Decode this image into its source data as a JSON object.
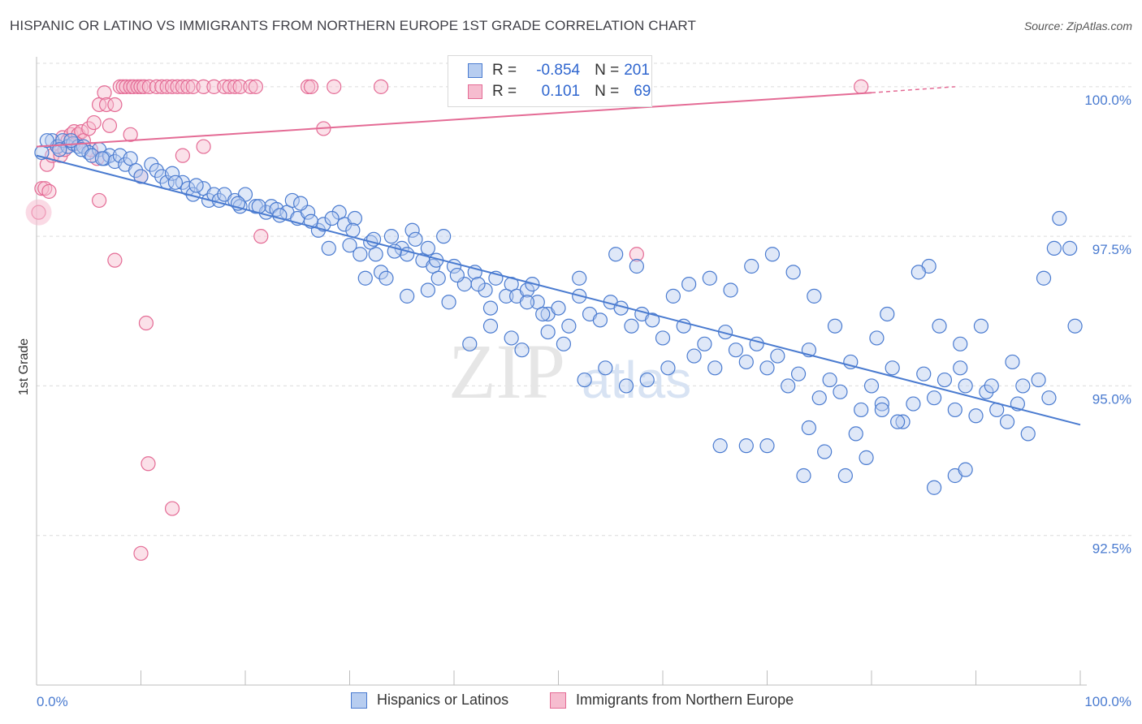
{
  "title": "HISPANIC OR LATINO VS IMMIGRANTS FROM NORTHERN EUROPE 1ST GRADE CORRELATION CHART",
  "source": "Source: ZipAtlas.com",
  "legend": {
    "row1": {
      "r_label": "R = ",
      "r_value": "-0.854",
      "n_label": "N = ",
      "n_value": "201"
    },
    "row2": {
      "r_label": "R = ",
      "r_value": "0.101",
      "n_label": "N = ",
      "n_value": "69"
    }
  },
  "bottom_legend": {
    "series1": "Hispanics or Latinos",
    "series2": "Immigrants from Northern Europe"
  },
  "watermark": {
    "zip": "ZIP",
    "atlas": "atlas"
  },
  "colors": {
    "blue": "#4a7bd0",
    "blue_fill": "#b7cdf0",
    "pink": "#e46b95",
    "pink_fill": "#f6bccf",
    "grid": "#dcdcdc"
  },
  "chart_data": {
    "type": "scatter",
    "title": "HISPANIC OR LATINO VS IMMIGRANTS FROM NORTHERN EUROPE 1ST GRADE CORRELATION CHART",
    "xlabel": "",
    "ylabel": "1st Grade",
    "xlim": [
      0,
      100
    ],
    "ylim": [
      90.0,
      100.5
    ],
    "x_tick_labels": [
      "0.0%",
      "100.0%"
    ],
    "y_ticks": [
      92.5,
      95.0,
      97.5,
      100.0
    ],
    "y_tick_labels": [
      "92.5%",
      "95.0%",
      "97.5%",
      "100.0%"
    ],
    "grid": true,
    "series": [
      {
        "name": "Hispanics or Latinos",
        "color": "#4a7bd0",
        "R": -0.854,
        "N": 201,
        "trend": {
          "x": [
            0,
            100
          ],
          "y": [
            98.85,
            94.35
          ]
        },
        "points": [
          [
            0.5,
            98.9
          ],
          [
            1.5,
            99.1
          ],
          [
            2.0,
            99.0
          ],
          [
            2.5,
            99.1
          ],
          [
            3.0,
            99.0
          ],
          [
            3.5,
            99.05
          ],
          [
            4.0,
            99.0
          ],
          [
            4.5,
            99.0
          ],
          [
            5.0,
            98.9
          ],
          [
            6.0,
            98.95
          ],
          [
            6.5,
            98.8
          ],
          [
            7.0,
            98.85
          ],
          [
            7.5,
            98.75
          ],
          [
            8.0,
            98.85
          ],
          [
            8.5,
            98.7
          ],
          [
            9.0,
            98.8
          ],
          [
            9.5,
            98.6
          ],
          [
            10.0,
            98.5
          ],
          [
            11.0,
            98.7
          ],
          [
            11.5,
            98.6
          ],
          [
            12.0,
            98.5
          ],
          [
            12.5,
            98.4
          ],
          [
            13.0,
            98.55
          ],
          [
            14.0,
            98.4
          ],
          [
            14.5,
            98.3
          ],
          [
            15.0,
            98.2
          ],
          [
            16.0,
            98.3
          ],
          [
            16.5,
            98.1
          ],
          [
            17.0,
            98.2
          ],
          [
            17.5,
            98.1
          ],
          [
            18.0,
            98.2
          ],
          [
            19.0,
            98.1
          ],
          [
            19.5,
            98.0
          ],
          [
            20.0,
            98.2
          ],
          [
            21.0,
            98.0
          ],
          [
            22.0,
            97.9
          ],
          [
            22.5,
            98.0
          ],
          [
            23.0,
            97.95
          ],
          [
            24.0,
            97.9
          ],
          [
            24.5,
            98.1
          ],
          [
            25.0,
            97.8
          ],
          [
            26.0,
            97.9
          ],
          [
            27.0,
            97.6
          ],
          [
            27.5,
            97.7
          ],
          [
            28.0,
            97.3
          ],
          [
            29.0,
            97.9
          ],
          [
            29.5,
            97.7
          ],
          [
            30.0,
            97.35
          ],
          [
            30.5,
            97.8
          ],
          [
            31.0,
            97.2
          ],
          [
            32.0,
            97.4
          ],
          [
            32.5,
            97.2
          ],
          [
            33.0,
            96.9
          ],
          [
            34.0,
            97.5
          ],
          [
            35.0,
            97.3
          ],
          [
            35.5,
            97.2
          ],
          [
            36.0,
            97.6
          ],
          [
            37.0,
            97.1
          ],
          [
            37.5,
            97.3
          ],
          [
            38.0,
            97.0
          ],
          [
            38.5,
            96.8
          ],
          [
            39.0,
            97.5
          ],
          [
            40.0,
            97.0
          ],
          [
            41.0,
            96.7
          ],
          [
            42.0,
            96.9
          ],
          [
            43.0,
            96.6
          ],
          [
            43.5,
            96.3
          ],
          [
            44.0,
            96.8
          ],
          [
            45.0,
            96.5
          ],
          [
            45.5,
            96.7
          ],
          [
            46.0,
            96.5
          ],
          [
            47.0,
            96.6
          ],
          [
            48.0,
            96.4
          ],
          [
            49.0,
            96.2
          ],
          [
            50.0,
            96.3
          ],
          [
            51.0,
            96.0
          ],
          [
            52.0,
            96.5
          ],
          [
            53.0,
            96.2
          ],
          [
            54.0,
            96.1
          ],
          [
            55.0,
            96.4
          ],
          [
            56.0,
            96.3
          ],
          [
            57.0,
            96.0
          ],
          [
            58.0,
            96.2
          ],
          [
            59.0,
            96.1
          ],
          [
            60.0,
            95.8
          ],
          [
            61.0,
            96.5
          ],
          [
            62.0,
            96.0
          ],
          [
            63.0,
            95.5
          ],
          [
            64.0,
            95.7
          ],
          [
            65.0,
            95.3
          ],
          [
            66.0,
            95.9
          ],
          [
            67.0,
            95.6
          ],
          [
            68.0,
            95.4
          ],
          [
            69.0,
            95.7
          ],
          [
            70.0,
            95.3
          ],
          [
            71.0,
            95.5
          ],
          [
            72.0,
            95.0
          ],
          [
            73.0,
            95.2
          ],
          [
            74.0,
            95.6
          ],
          [
            75.0,
            94.8
          ],
          [
            76.0,
            95.1
          ],
          [
            77.0,
            94.9
          ],
          [
            78.0,
            95.4
          ],
          [
            79.0,
            94.6
          ],
          [
            80.0,
            95.0
          ],
          [
            81.0,
            94.7
          ],
          [
            82.0,
            95.3
          ],
          [
            83.0,
            94.4
          ],
          [
            84.0,
            94.7
          ],
          [
            85.0,
            95.2
          ],
          [
            86.0,
            94.8
          ],
          [
            87.0,
            95.1
          ],
          [
            88.0,
            94.6
          ],
          [
            89.0,
            95.0
          ],
          [
            90.0,
            94.5
          ],
          [
            91.0,
            94.9
          ],
          [
            92.0,
            94.6
          ],
          [
            93.0,
            94.4
          ],
          [
            94.0,
            94.7
          ],
          [
            95.0,
            94.2
          ],
          [
            96.0,
            95.1
          ],
          [
            97.0,
            94.8
          ],
          [
            98.0,
            97.8
          ],
          [
            99.0,
            97.3
          ],
          [
            99.5,
            96.0
          ],
          [
            97.5,
            97.3
          ],
          [
            96.5,
            96.8
          ],
          [
            90.5,
            96.0
          ],
          [
            88.5,
            95.7
          ],
          [
            86.5,
            96.0
          ],
          [
            85.5,
            97.0
          ],
          [
            84.5,
            96.9
          ],
          [
            81.5,
            96.2
          ],
          [
            80.5,
            95.8
          ],
          [
            76.5,
            96.0
          ],
          [
            74.5,
            96.5
          ],
          [
            72.5,
            96.9
          ],
          [
            70.5,
            97.2
          ],
          [
            68.5,
            97.0
          ],
          [
            66.5,
            96.6
          ],
          [
            64.5,
            96.8
          ],
          [
            62.5,
            96.7
          ],
          [
            57.5,
            97.0
          ],
          [
            55.5,
            97.2
          ],
          [
            48.5,
            96.2
          ],
          [
            47.5,
            96.7
          ],
          [
            46.5,
            95.6
          ],
          [
            45.5,
            95.8
          ],
          [
            43.5,
            96.0
          ],
          [
            41.5,
            95.7
          ],
          [
            39.5,
            96.4
          ],
          [
            37.5,
            96.6
          ],
          [
            35.5,
            96.5
          ],
          [
            33.5,
            96.8
          ],
          [
            31.5,
            96.8
          ],
          [
            65.5,
            94.0
          ],
          [
            68.0,
            94.0
          ],
          [
            70.0,
            94.0
          ],
          [
            73.5,
            93.5
          ],
          [
            75.5,
            93.9
          ],
          [
            77.5,
            93.5
          ],
          [
            79.5,
            93.8
          ],
          [
            86.0,
            93.3
          ],
          [
            88.0,
            93.5
          ],
          [
            89.0,
            93.6
          ],
          [
            74.0,
            94.3
          ],
          [
            78.5,
            94.2
          ],
          [
            81.0,
            94.6
          ],
          [
            82.5,
            94.4
          ],
          [
            88.5,
            95.3
          ],
          [
            91.5,
            95.0
          ],
          [
            93.5,
            95.4
          ],
          [
            94.5,
            95.0
          ],
          [
            60.5,
            95.3
          ],
          [
            58.5,
            95.1
          ],
          [
            56.5,
            95.0
          ],
          [
            54.5,
            95.3
          ],
          [
            52.5,
            95.1
          ],
          [
            50.5,
            95.7
          ],
          [
            49.0,
            95.9
          ],
          [
            47.0,
            96.4
          ],
          [
            52.0,
            96.8
          ],
          [
            1.0,
            99.1
          ],
          [
            2.2,
            98.95
          ],
          [
            3.3,
            99.1
          ],
          [
            4.3,
            98.95
          ],
          [
            5.3,
            98.85
          ],
          [
            6.3,
            98.8
          ],
          [
            13.3,
            98.4
          ],
          [
            15.3,
            98.35
          ],
          [
            19.3,
            98.05
          ],
          [
            21.3,
            98.0
          ],
          [
            23.3,
            97.85
          ],
          [
            25.3,
            98.05
          ],
          [
            26.3,
            97.75
          ],
          [
            28.3,
            97.8
          ],
          [
            30.3,
            97.6
          ],
          [
            32.3,
            97.45
          ],
          [
            34.3,
            97.25
          ],
          [
            36.3,
            97.45
          ],
          [
            38.3,
            97.1
          ],
          [
            40.3,
            96.85
          ],
          [
            42.3,
            96.7
          ]
        ]
      },
      {
        "name": "Immigrants from Northern Europe",
        "color": "#e46b95",
        "R": 0.101,
        "N": 69,
        "trend": {
          "x": [
            0,
            80
          ],
          "y": [
            99.0,
            99.9
          ],
          "dashed_to": [
            88,
            100.0
          ]
        },
        "points": [
          [
            0.2,
            97.9
          ],
          [
            0.5,
            98.3
          ],
          [
            0.8,
            98.3
          ],
          [
            1.0,
            98.7
          ],
          [
            1.5,
            98.85
          ],
          [
            2.0,
            99.0
          ],
          [
            2.3,
            98.85
          ],
          [
            2.5,
            99.15
          ],
          [
            3.0,
            99.1
          ],
          [
            3.3,
            99.2
          ],
          [
            3.6,
            99.25
          ],
          [
            4.0,
            99.2
          ],
          [
            4.3,
            99.25
          ],
          [
            4.5,
            99.1
          ],
          [
            5.0,
            99.3
          ],
          [
            5.5,
            99.4
          ],
          [
            5.8,
            98.8
          ],
          [
            6.0,
            99.7
          ],
          [
            6.5,
            99.9
          ],
          [
            6.7,
            99.7
          ],
          [
            7.0,
            99.35
          ],
          [
            7.5,
            99.7
          ],
          [
            8.0,
            100.0
          ],
          [
            8.3,
            100.0
          ],
          [
            8.6,
            100.0
          ],
          [
            9.0,
            100.0
          ],
          [
            9.3,
            100.0
          ],
          [
            9.7,
            100.0
          ],
          [
            10.0,
            100.0
          ],
          [
            10.3,
            100.0
          ],
          [
            10.8,
            100.0
          ],
          [
            11.5,
            100.0
          ],
          [
            12.0,
            100.0
          ],
          [
            12.5,
            100.0
          ],
          [
            13.0,
            100.0
          ],
          [
            13.5,
            100.0
          ],
          [
            14.0,
            100.0
          ],
          [
            14.5,
            100.0
          ],
          [
            15.0,
            100.0
          ],
          [
            16.0,
            100.0
          ],
          [
            17.0,
            100.0
          ],
          [
            18.0,
            100.0
          ],
          [
            18.5,
            100.0
          ],
          [
            19.0,
            100.0
          ],
          [
            19.5,
            100.0
          ],
          [
            20.5,
            100.0
          ],
          [
            21.0,
            100.0
          ],
          [
            26.0,
            100.0
          ],
          [
            26.3,
            100.0
          ],
          [
            28.5,
            100.0
          ],
          [
            33.0,
            100.0
          ],
          [
            27.5,
            99.3
          ],
          [
            16.0,
            99.0
          ],
          [
            14.0,
            98.85
          ],
          [
            10.0,
            98.5
          ],
          [
            9.0,
            99.2
          ],
          [
            6.0,
            98.1
          ],
          [
            7.5,
            97.1
          ],
          [
            21.5,
            97.5
          ],
          [
            57.5,
            97.2
          ],
          [
            10.5,
            96.05
          ],
          [
            10.7,
            93.7
          ],
          [
            13.0,
            92.95
          ],
          [
            10.0,
            92.2
          ],
          [
            79.0,
            100.0
          ],
          [
            5.2,
            98.95
          ],
          [
            3.8,
            99.05
          ],
          [
            2.7,
            98.95
          ],
          [
            1.2,
            98.25
          ]
        ]
      }
    ]
  }
}
